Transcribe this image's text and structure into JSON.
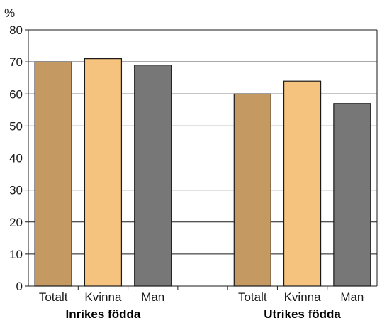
{
  "chart_data": {
    "type": "bar",
    "ylabel": "%",
    "ylim": [
      0,
      80
    ],
    "yticks": [
      0,
      10,
      20,
      30,
      40,
      50,
      60,
      70,
      80
    ],
    "grid": true,
    "groups": [
      {
        "name": "Inrikes födda",
        "bars": [
          {
            "label": "Totalt",
            "value": 70,
            "color": "#c49a62"
          },
          {
            "label": "Kvinna",
            "value": 71,
            "color": "#f5c37e"
          },
          {
            "label": "Man",
            "value": 69,
            "color": "#777777"
          }
        ]
      },
      {
        "name": "Utrikes födda",
        "bars": [
          {
            "label": "Totalt",
            "value": 60,
            "color": "#c49a62"
          },
          {
            "label": "Kvinna",
            "value": 64,
            "color": "#f5c37e"
          },
          {
            "label": "Man",
            "value": 57,
            "color": "#777777"
          }
        ]
      }
    ]
  }
}
